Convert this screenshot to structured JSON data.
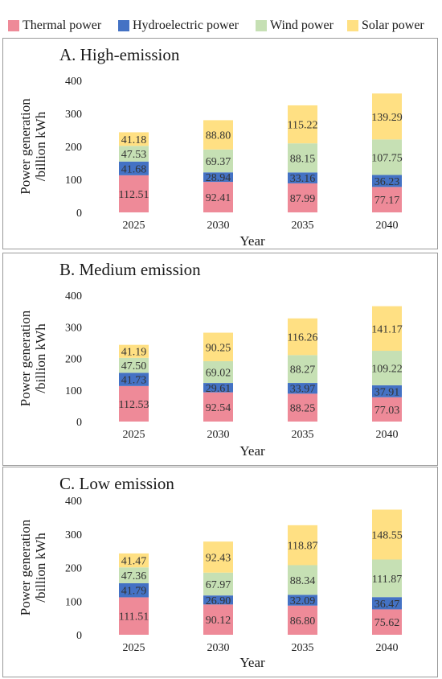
{
  "legend": [
    {
      "name": "Thermal power",
      "color": "#ee8a98"
    },
    {
      "name": "Hydroelectric power",
      "color": "#4472c4"
    },
    {
      "name": "Wind power",
      "color": "#c6e0b4"
    },
    {
      "name": "Solar power",
      "color": "#ffe083"
    }
  ],
  "chart_data": [
    {
      "type": "bar",
      "stacked": true,
      "title": "A. High-emission",
      "xlabel": "Year",
      "ylabel": "Power generation /billion kWh",
      "ylim": [
        0,
        400
      ],
      "yticks": [
        0,
        100,
        200,
        300,
        400
      ],
      "categories": [
        "2025",
        "2030",
        "2035",
        "2040"
      ],
      "series": [
        {
          "name": "Thermal power",
          "color": "#ee8a98",
          "values": [
            112.51,
            92.41,
            87.99,
            77.17
          ],
          "labels": [
            "112.51",
            "92.41",
            "87.99",
            "77.17"
          ]
        },
        {
          "name": "Hydroelectric power",
          "color": "#4472c4",
          "values": [
            41.68,
            28.94,
            33.16,
            36.23
          ],
          "labels": [
            "41.68",
            "28.94",
            "33.16",
            "36.23"
          ]
        },
        {
          "name": "Wind power",
          "color": "#c6e0b4",
          "values": [
            47.53,
            69.37,
            88.15,
            107.75
          ],
          "labels": [
            "47.53",
            "69.37",
            "88.15",
            "107.75"
          ]
        },
        {
          "name": "Solar power",
          "color": "#ffe083",
          "values": [
            41.18,
            88.8,
            115.22,
            139.29
          ],
          "labels": [
            "41.18",
            "88.80",
            "115.22",
            "139.29"
          ]
        }
      ]
    },
    {
      "type": "bar",
      "stacked": true,
      "title": "B. Medium emission",
      "xlabel": "Year",
      "ylabel": "Power generation /billion kWh",
      "ylim": [
        0,
        400
      ],
      "yticks": [
        0,
        100,
        200,
        300,
        400
      ],
      "categories": [
        "2025",
        "2030",
        "2035",
        "2040"
      ],
      "series": [
        {
          "name": "Thermal power",
          "color": "#ee8a98",
          "values": [
            112.53,
            92.54,
            88.25,
            77.03
          ],
          "labels": [
            "112.53",
            "92.54",
            "88.25",
            "77.03"
          ]
        },
        {
          "name": "Hydroelectric power",
          "color": "#4472c4",
          "values": [
            41.73,
            29.61,
            33.97,
            37.91
          ],
          "labels": [
            "41.73",
            "29.61",
            "33.97",
            "37.91"
          ]
        },
        {
          "name": "Wind power",
          "color": "#c6e0b4",
          "values": [
            47.5,
            69.02,
            88.27,
            109.22
          ],
          "labels": [
            "47.50",
            "69.02",
            "88.27",
            "109.22"
          ]
        },
        {
          "name": "Solar power",
          "color": "#ffe083",
          "values": [
            41.19,
            90.25,
            116.26,
            141.17
          ],
          "labels": [
            "41.19",
            "90.25",
            "116.26",
            "141.17"
          ]
        }
      ]
    },
    {
      "type": "bar",
      "stacked": true,
      "title": "C. Low emission",
      "xlabel": "Year",
      "ylabel": "Power generation /billion kWh",
      "ylim": [
        0,
        400
      ],
      "yticks": [
        0,
        100,
        200,
        300,
        400
      ],
      "categories": [
        "2025",
        "2030",
        "2035",
        "2040"
      ],
      "series": [
        {
          "name": "Thermal power",
          "color": "#ee8a98",
          "values": [
            111.51,
            90.12,
            86.8,
            75.62
          ],
          "labels": [
            "111.51",
            "90.12",
            "86.80",
            "75.62"
          ]
        },
        {
          "name": "Hydroelectric power",
          "color": "#4472c4",
          "values": [
            41.79,
            26.9,
            32.09,
            36.47
          ],
          "labels": [
            "41.79",
            "26.90",
            "32.09",
            "36.47"
          ]
        },
        {
          "name": "Wind power",
          "color": "#c6e0b4",
          "values": [
            47.36,
            67.97,
            88.34,
            111.87
          ],
          "labels": [
            "47.36",
            "67.97",
            "88.34",
            "111.87"
          ]
        },
        {
          "name": "Solar power",
          "color": "#ffe083",
          "values": [
            41.47,
            92.43,
            118.87,
            148.55
          ],
          "labels": [
            "41.47",
            "92.43",
            "118.87",
            "148.55"
          ]
        }
      ]
    }
  ]
}
